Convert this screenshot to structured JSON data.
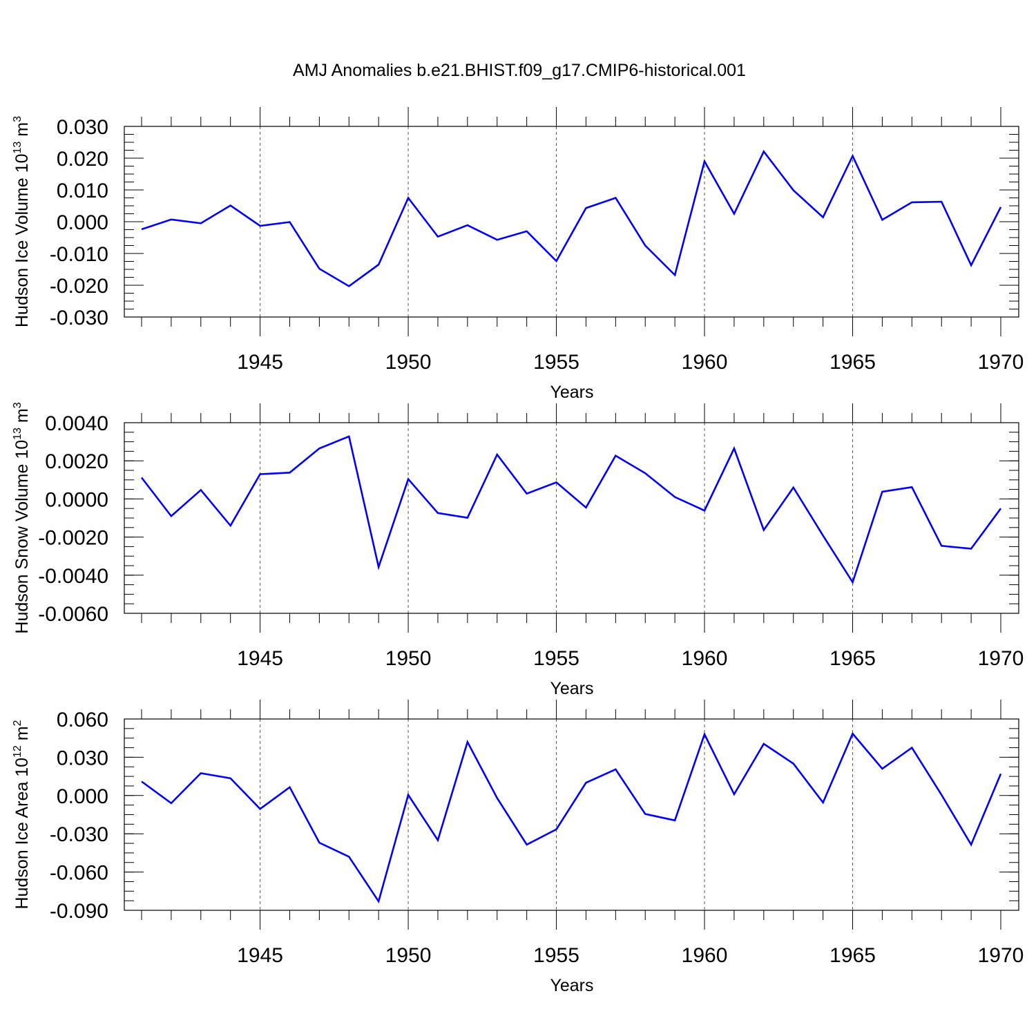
{
  "title": "AMJ Anomalies b.e21.BHIST.f09_g17.CMIP6-historical.001",
  "line_color": "#0000ff",
  "chart_data": [
    {
      "type": "line",
      "title": "",
      "xlabel": "Years",
      "ylabel": {
        "main": "Hudson Ice Volume 10",
        "exp": "13",
        "unit": " m",
        "unit_exp": "3"
      },
      "xlim": [
        1941,
        1970
      ],
      "ylim": [
        -0.03,
        0.03
      ],
      "x_ticks": [
        1945,
        1950,
        1955,
        1960,
        1965,
        1970
      ],
      "x_tick_labels": [
        "1945",
        "1950",
        "1955",
        "1960",
        "1965",
        "1970"
      ],
      "y_ticks": [
        -0.03,
        -0.02,
        -0.01,
        0.0,
        0.01,
        0.02,
        0.03
      ],
      "y_tick_labels": [
        "-0.030",
        "-0.020",
        "-0.010",
        "0.000",
        "0.010",
        "0.020",
        "0.030"
      ],
      "y_minor_step": 0.0025,
      "grid": "x dashed",
      "series": [
        {
          "x": [
            1941,
            1942,
            1943,
            1944,
            1945,
            1946,
            1947,
            1948,
            1949,
            1950,
            1951,
            1952,
            1953,
            1954,
            1955,
            1956,
            1957,
            1958,
            1959,
            1960,
            1961,
            1962,
            1963,
            1964,
            1965,
            1966,
            1967,
            1968,
            1969,
            1970
          ],
          "values": [
            -0.0024,
            0.0007,
            -0.0005,
            0.0051,
            -0.0013,
            -0.0001,
            -0.0148,
            -0.0203,
            -0.0135,
            0.0075,
            -0.0047,
            -0.0011,
            -0.0057,
            -0.003,
            -0.0124,
            0.0043,
            0.0075,
            -0.0075,
            -0.0168,
            0.019,
            0.0025,
            0.0221,
            0.0099,
            0.0014,
            0.0207,
            0.0006,
            0.0061,
            0.0063,
            -0.0137,
            0.0046
          ]
        }
      ]
    },
    {
      "type": "line",
      "title": "",
      "xlabel": "Years",
      "ylabel": {
        "main": "Hudson Snow Volume 10",
        "exp": "13",
        "unit": " m",
        "unit_exp": "3"
      },
      "xlim": [
        1941,
        1970
      ],
      "ylim": [
        -0.006,
        0.004
      ],
      "x_ticks": [
        1945,
        1950,
        1955,
        1960,
        1965,
        1970
      ],
      "x_tick_labels": [
        "1945",
        "1950",
        "1955",
        "1960",
        "1965",
        "1970"
      ],
      "y_ticks": [
        -0.006,
        -0.004,
        -0.002,
        0.0,
        0.002,
        0.004
      ],
      "y_tick_labels": [
        "-0.0060",
        "-0.0040",
        "-0.0020",
        "0.0000",
        "0.0020",
        "0.0040"
      ],
      "y_minor_step": 0.0005,
      "grid": "x dashed",
      "series": [
        {
          "x": [
            1941,
            1942,
            1943,
            1944,
            1945,
            1946,
            1947,
            1948,
            1949,
            1950,
            1951,
            1952,
            1953,
            1954,
            1955,
            1956,
            1957,
            1958,
            1959,
            1960,
            1961,
            1962,
            1963,
            1964,
            1965,
            1966,
            1967,
            1968,
            1969,
            1970
          ],
          "values": [
            0.00112,
            -0.0009,
            0.00047,
            -0.0014,
            0.0013,
            0.00138,
            0.00265,
            0.00328,
            -0.00357,
            0.00104,
            -0.00074,
            -0.00099,
            0.00233,
            0.00028,
            0.00087,
            -0.00045,
            0.00227,
            0.00135,
            0.0001,
            -0.00061,
            0.00265,
            -0.00163,
            0.0006,
            -0.00192,
            -0.00437,
            0.00038,
            0.00062,
            -0.00246,
            -0.00261,
            -0.0005
          ]
        }
      ]
    },
    {
      "type": "line",
      "title": "",
      "xlabel": "Years",
      "ylabel": {
        "main": "Hudson Ice Area 10",
        "exp": "12",
        "unit": " m",
        "unit_exp": "2"
      },
      "xlim": [
        1941,
        1970
      ],
      "ylim": [
        -0.09,
        0.06
      ],
      "x_ticks": [
        1945,
        1950,
        1955,
        1960,
        1965,
        1970
      ],
      "x_tick_labels": [
        "1945",
        "1950",
        "1955",
        "1960",
        "1965",
        "1970"
      ],
      "y_ticks": [
        -0.09,
        -0.06,
        -0.03,
        0.0,
        0.03,
        0.06
      ],
      "y_tick_labels": [
        "-0.090",
        "-0.060",
        "-0.030",
        "0.000",
        "0.030",
        "0.060"
      ],
      "y_minor_step": 0.0075,
      "grid": "x dashed",
      "series": [
        {
          "x": [
            1941,
            1942,
            1943,
            1944,
            1945,
            1946,
            1947,
            1948,
            1949,
            1950,
            1951,
            1952,
            1953,
            1954,
            1955,
            1956,
            1957,
            1958,
            1959,
            1960,
            1961,
            1962,
            1963,
            1964,
            1965,
            1966,
            1967,
            1968,
            1969,
            1970
          ],
          "values": [
            0.011,
            -0.006,
            0.0175,
            0.0135,
            -0.0105,
            0.0065,
            -0.037,
            -0.048,
            -0.083,
            0.0005,
            -0.035,
            0.042,
            -0.002,
            -0.0385,
            -0.0265,
            0.01,
            0.0205,
            -0.0145,
            -0.0195,
            0.048,
            0.001,
            0.0405,
            0.025,
            -0.0055,
            0.0485,
            0.021,
            0.0375,
            0.0005,
            -0.0385,
            0.017
          ]
        }
      ]
    }
  ]
}
